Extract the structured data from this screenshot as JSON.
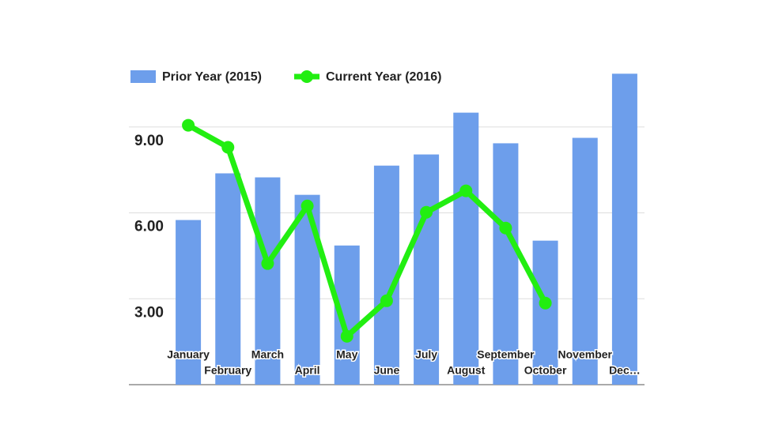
{
  "chart_data": {
    "type": "bar",
    "categories": [
      "January",
      "February",
      "March",
      "April",
      "May",
      "June",
      "July",
      "August",
      "September",
      "October",
      "November",
      "Dec…"
    ],
    "series": [
      {
        "name": "Prior Year (2015)",
        "color": "#6d9eeb",
        "type": "bar",
        "values": [
          5.75,
          7.38,
          7.24,
          6.63,
          4.86,
          7.65,
          8.04,
          9.5,
          8.43,
          5.03,
          8.62,
          10.86
        ]
      },
      {
        "name": "Current Year (2016)",
        "color": "#22ee11",
        "type": "line",
        "values": [
          9.06,
          8.29,
          4.23,
          6.24,
          1.69,
          2.93,
          6.02,
          6.77,
          5.47,
          2.85,
          null,
          null
        ]
      }
    ],
    "ylim": [
      0,
      12
    ],
    "yticks": [
      {
        "value": 3,
        "label": "3.00"
      },
      {
        "value": 6,
        "label": "6.00"
      },
      {
        "value": 9,
        "label": "9.00"
      }
    ],
    "grid": true,
    "legend": "top"
  }
}
